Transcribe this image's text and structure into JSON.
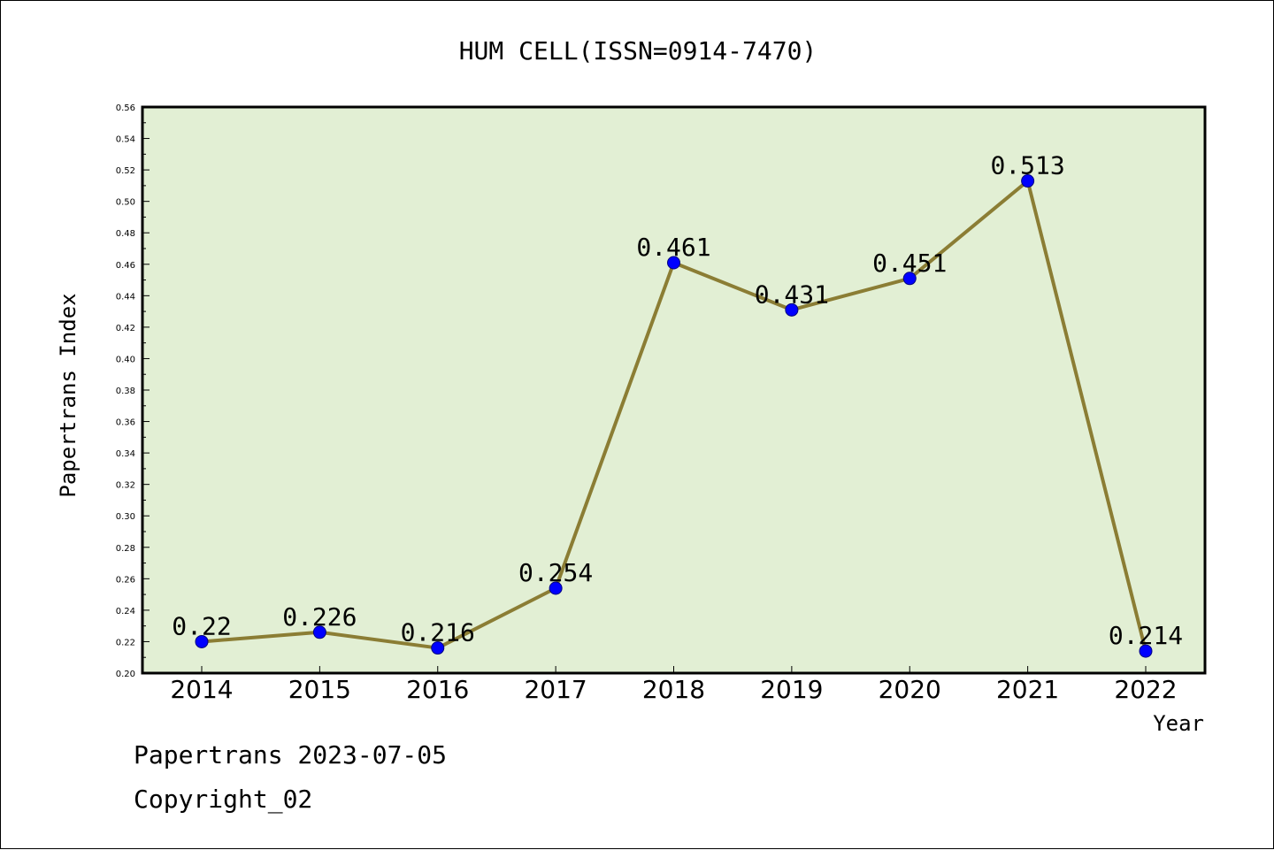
{
  "chart_data": {
    "type": "line",
    "title": "HUM CELL(ISSN=0914-7470)",
    "xlabel": "Year",
    "ylabel": "Papertrans Index",
    "categories": [
      "2014",
      "2015",
      "2016",
      "2017",
      "2018",
      "2019",
      "2020",
      "2021",
      "2022"
    ],
    "values": [
      0.22,
      0.226,
      0.216,
      0.254,
      0.461,
      0.431,
      0.451,
      0.513,
      0.214
    ],
    "data_labels": [
      "0.22",
      "0.226",
      "0.216",
      "0.254",
      "0.461",
      "0.431",
      "0.451",
      "0.513",
      "0.214"
    ],
    "ylim": [
      0.2,
      0.56
    ],
    "y_ticks": [
      "0.20",
      "0.22",
      "0.24",
      "0.26",
      "0.28",
      "0.30",
      "0.32",
      "0.34",
      "0.36",
      "0.38",
      "0.40",
      "0.42",
      "0.44",
      "0.46",
      "0.48",
      "0.50",
      "0.52",
      "0.54",
      "0.56"
    ],
    "grid": false,
    "legend": "none",
    "colors": {
      "plot_background": "#e2efd4",
      "line": "#8b7d34",
      "marker": "#0000ff",
      "axis": "#000000"
    }
  },
  "footer": {
    "source": "Papertrans 2023-07-05",
    "copyright": "Copyright_02"
  }
}
